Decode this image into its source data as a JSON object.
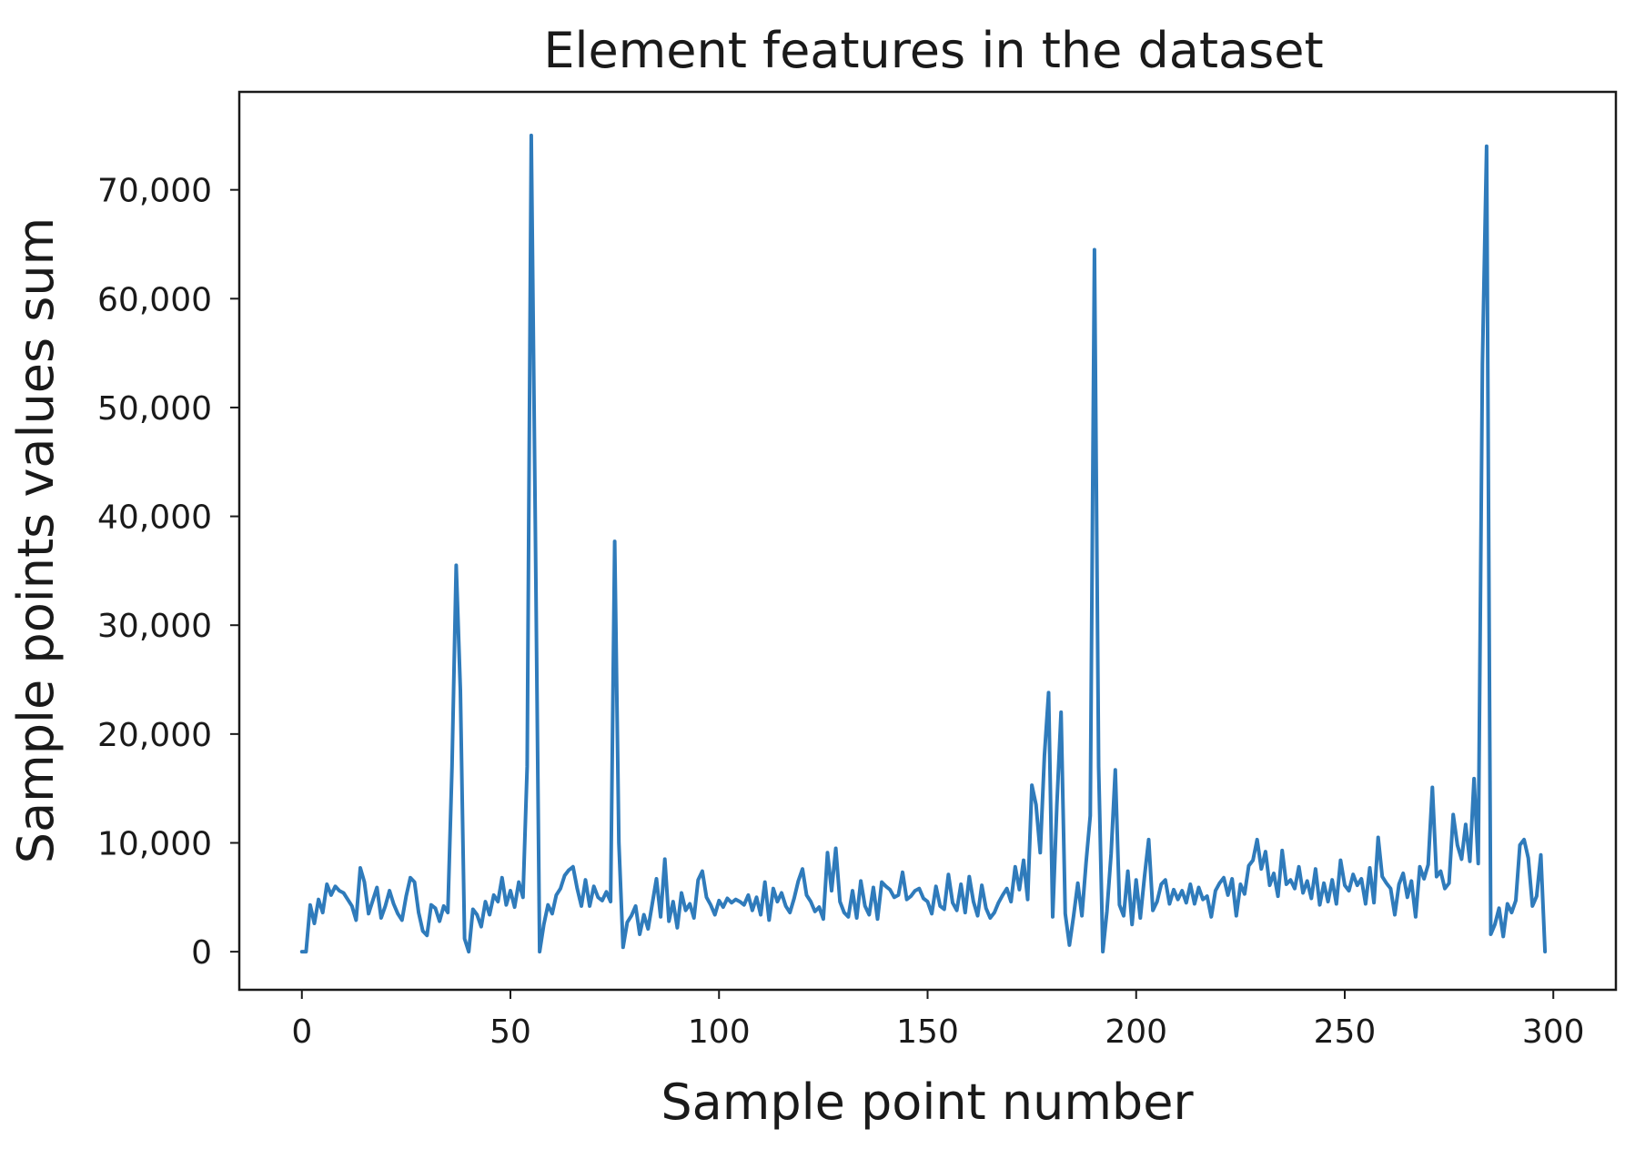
{
  "chart_data": {
    "type": "line",
    "title": "Element features in the dataset",
    "xlabel": "Sample point number",
    "ylabel": "Sample points  values sum",
    "xlim": [
      -15,
      315
    ],
    "ylim": [
      -3500,
      79000
    ],
    "xticks": [
      0,
      50,
      100,
      150,
      200,
      250,
      300
    ],
    "xtick_labels": [
      "0",
      "50",
      "100",
      "150",
      "200",
      "250",
      "300"
    ],
    "yticks": [
      0,
      10000,
      20000,
      30000,
      40000,
      50000,
      60000,
      70000
    ],
    "ytick_labels": [
      "0",
      "10,000",
      "20,000",
      "30,000",
      "40,000",
      "50,000",
      "60,000",
      "70,000"
    ],
    "grid": false,
    "line_color": "#2f7bbb",
    "series": [
      {
        "points": [
          [
            0,
            0
          ],
          [
            1,
            0
          ],
          [
            2,
            4300
          ],
          [
            3,
            2600
          ],
          [
            4,
            4800
          ],
          [
            5,
            3600
          ],
          [
            6,
            6200
          ],
          [
            7,
            5200
          ],
          [
            8,
            6000
          ],
          [
            9,
            5600
          ],
          [
            10,
            5400
          ],
          [
            11,
            4800
          ],
          [
            12,
            4200
          ],
          [
            13,
            2900
          ],
          [
            14,
            7700
          ],
          [
            15,
            6400
          ],
          [
            16,
            3500
          ],
          [
            17,
            4700
          ],
          [
            18,
            5900
          ],
          [
            19,
            3100
          ],
          [
            20,
            4200
          ],
          [
            21,
            5600
          ],
          [
            22,
            4400
          ],
          [
            23,
            3500
          ],
          [
            24,
            2900
          ],
          [
            25,
            5100
          ],
          [
            26,
            6800
          ],
          [
            27,
            6400
          ],
          [
            28,
            3600
          ],
          [
            29,
            1900
          ],
          [
            30,
            1500
          ],
          [
            31,
            4300
          ],
          [
            32,
            4000
          ],
          [
            33,
            2800
          ],
          [
            34,
            4200
          ],
          [
            35,
            3600
          ],
          [
            36,
            17000
          ],
          [
            37,
            35500
          ],
          [
            38,
            24000
          ],
          [
            39,
            1200
          ],
          [
            40,
            0
          ],
          [
            41,
            3900
          ],
          [
            42,
            3400
          ],
          [
            43,
            2300
          ],
          [
            44,
            4600
          ],
          [
            45,
            3400
          ],
          [
            46,
            5200
          ],
          [
            47,
            4600
          ],
          [
            48,
            6800
          ],
          [
            49,
            4300
          ],
          [
            50,
            5600
          ],
          [
            51,
            4100
          ],
          [
            52,
            6400
          ],
          [
            53,
            5000
          ],
          [
            54,
            17000
          ],
          [
            55,
            75000
          ],
          [
            56,
            38000
          ],
          [
            57,
            0
          ],
          [
            58,
            2500
          ],
          [
            59,
            4300
          ],
          [
            60,
            3500
          ],
          [
            61,
            5200
          ],
          [
            62,
            5800
          ],
          [
            63,
            7000
          ],
          [
            64,
            7500
          ],
          [
            65,
            7800
          ],
          [
            66,
            5800
          ],
          [
            67,
            4200
          ],
          [
            68,
            6600
          ],
          [
            69,
            4200
          ],
          [
            70,
            6000
          ],
          [
            71,
            5000
          ],
          [
            72,
            4700
          ],
          [
            73,
            5500
          ],
          [
            74,
            4600
          ],
          [
            75,
            37700
          ],
          [
            76,
            10000
          ],
          [
            77,
            400
          ],
          [
            78,
            2700
          ],
          [
            79,
            3300
          ],
          [
            80,
            4200
          ],
          [
            81,
            1600
          ],
          [
            82,
            3400
          ],
          [
            83,
            2100
          ],
          [
            84,
            4400
          ],
          [
            85,
            6700
          ],
          [
            86,
            3200
          ],
          [
            87,
            8500
          ],
          [
            88,
            2800
          ],
          [
            89,
            4600
          ],
          [
            90,
            2200
          ],
          [
            91,
            5400
          ],
          [
            92,
            3800
          ],
          [
            93,
            4400
          ],
          [
            94,
            3100
          ],
          [
            95,
            6600
          ],
          [
            96,
            7400
          ],
          [
            97,
            5000
          ],
          [
            98,
            4300
          ],
          [
            99,
            3400
          ],
          [
            100,
            4700
          ],
          [
            101,
            4100
          ],
          [
            102,
            4900
          ],
          [
            103,
            4500
          ],
          [
            104,
            4800
          ],
          [
            105,
            4600
          ],
          [
            106,
            4300
          ],
          [
            107,
            5200
          ],
          [
            108,
            3800
          ],
          [
            109,
            5000
          ],
          [
            110,
            3400
          ],
          [
            111,
            6400
          ],
          [
            112,
            2900
          ],
          [
            113,
            5800
          ],
          [
            114,
            4600
          ],
          [
            115,
            5400
          ],
          [
            116,
            4200
          ],
          [
            117,
            3600
          ],
          [
            118,
            4900
          ],
          [
            119,
            6500
          ],
          [
            120,
            7600
          ],
          [
            121,
            5200
          ],
          [
            122,
            4600
          ],
          [
            123,
            3700
          ],
          [
            124,
            4100
          ],
          [
            125,
            3000
          ],
          [
            126,
            9100
          ],
          [
            127,
            5600
          ],
          [
            128,
            9500
          ],
          [
            129,
            4600
          ],
          [
            130,
            3600
          ],
          [
            131,
            3200
          ],
          [
            132,
            5600
          ],
          [
            133,
            3100
          ],
          [
            134,
            6500
          ],
          [
            135,
            4200
          ],
          [
            136,
            3400
          ],
          [
            137,
            5900
          ],
          [
            138,
            3000
          ],
          [
            139,
            6400
          ],
          [
            140,
            6000
          ],
          [
            141,
            5700
          ],
          [
            142,
            5000
          ],
          [
            143,
            5200
          ],
          [
            144,
            7300
          ],
          [
            145,
            4800
          ],
          [
            146,
            5100
          ],
          [
            147,
            5600
          ],
          [
            148,
            5800
          ],
          [
            149,
            4900
          ],
          [
            150,
            4600
          ],
          [
            151,
            3500
          ],
          [
            152,
            6000
          ],
          [
            153,
            4200
          ],
          [
            154,
            3900
          ],
          [
            155,
            7100
          ],
          [
            156,
            4500
          ],
          [
            157,
            3800
          ],
          [
            158,
            6200
          ],
          [
            159,
            3600
          ],
          [
            160,
            6900
          ],
          [
            161,
            4600
          ],
          [
            162,
            3300
          ],
          [
            163,
            6100
          ],
          [
            164,
            4000
          ],
          [
            165,
            3100
          ],
          [
            166,
            3600
          ],
          [
            167,
            4500
          ],
          [
            168,
            5200
          ],
          [
            169,
            5800
          ],
          [
            170,
            4600
          ],
          [
            171,
            7800
          ],
          [
            172,
            5700
          ],
          [
            173,
            8400
          ],
          [
            174,
            4800
          ],
          [
            175,
            15300
          ],
          [
            176,
            13500
          ],
          [
            177,
            9100
          ],
          [
            178,
            18000
          ],
          [
            179,
            23800
          ],
          [
            180,
            3200
          ],
          [
            181,
            13500
          ],
          [
            182,
            22000
          ],
          [
            183,
            3500
          ],
          [
            184,
            600
          ],
          [
            185,
            3300
          ],
          [
            186,
            6300
          ],
          [
            187,
            3300
          ],
          [
            188,
            8200
          ],
          [
            189,
            12500
          ],
          [
            190,
            64500
          ],
          [
            191,
            17000
          ],
          [
            192,
            0
          ],
          [
            193,
            3700
          ],
          [
            194,
            9000
          ],
          [
            195,
            16700
          ],
          [
            196,
            4300
          ],
          [
            197,
            3300
          ],
          [
            198,
            7400
          ],
          [
            199,
            2500
          ],
          [
            200,
            6600
          ],
          [
            201,
            3100
          ],
          [
            202,
            6900
          ],
          [
            203,
            10300
          ],
          [
            204,
            3800
          ],
          [
            205,
            4600
          ],
          [
            206,
            6200
          ],
          [
            207,
            6600
          ],
          [
            208,
            4400
          ],
          [
            209,
            5700
          ],
          [
            210,
            4800
          ],
          [
            211,
            5600
          ],
          [
            212,
            4500
          ],
          [
            213,
            6200
          ],
          [
            214,
            4400
          ],
          [
            215,
            5900
          ],
          [
            216,
            4800
          ],
          [
            217,
            5100
          ],
          [
            218,
            3200
          ],
          [
            219,
            5600
          ],
          [
            220,
            6300
          ],
          [
            221,
            6800
          ],
          [
            222,
            5200
          ],
          [
            223,
            6700
          ],
          [
            224,
            3300
          ],
          [
            225,
            6200
          ],
          [
            226,
            5300
          ],
          [
            227,
            7900
          ],
          [
            228,
            8400
          ],
          [
            229,
            10300
          ],
          [
            230,
            7600
          ],
          [
            231,
            9200
          ],
          [
            232,
            6100
          ],
          [
            233,
            7200
          ],
          [
            234,
            5100
          ],
          [
            235,
            9300
          ],
          [
            236,
            6200
          ],
          [
            237,
            6600
          ],
          [
            238,
            5800
          ],
          [
            239,
            7800
          ],
          [
            240,
            5400
          ],
          [
            241,
            6500
          ],
          [
            242,
            4900
          ],
          [
            243,
            7600
          ],
          [
            244,
            4300
          ],
          [
            245,
            6300
          ],
          [
            246,
            4600
          ],
          [
            247,
            6600
          ],
          [
            248,
            4400
          ],
          [
            249,
            8400
          ],
          [
            250,
            6100
          ],
          [
            251,
            5600
          ],
          [
            252,
            7100
          ],
          [
            253,
            6100
          ],
          [
            254,
            6700
          ],
          [
            255,
            4400
          ],
          [
            256,
            7700
          ],
          [
            257,
            4500
          ],
          [
            258,
            10500
          ],
          [
            259,
            6900
          ],
          [
            260,
            6300
          ],
          [
            261,
            5800
          ],
          [
            262,
            3400
          ],
          [
            263,
            6200
          ],
          [
            264,
            7200
          ],
          [
            265,
            5000
          ],
          [
            266,
            6500
          ],
          [
            267,
            3200
          ],
          [
            268,
            7800
          ],
          [
            269,
            6700
          ],
          [
            270,
            8000
          ],
          [
            271,
            15100
          ],
          [
            272,
            6900
          ],
          [
            273,
            7400
          ],
          [
            274,
            5800
          ],
          [
            275,
            6300
          ],
          [
            276,
            12600
          ],
          [
            277,
            9800
          ],
          [
            278,
            8500
          ],
          [
            279,
            11700
          ],
          [
            280,
            8300
          ],
          [
            281,
            15900
          ],
          [
            282,
            8100
          ],
          [
            283,
            54000
          ],
          [
            284,
            74000
          ],
          [
            285,
            1600
          ],
          [
            286,
            2500
          ],
          [
            287,
            4000
          ],
          [
            288,
            1400
          ],
          [
            289,
            4400
          ],
          [
            290,
            3600
          ],
          [
            291,
            4700
          ],
          [
            292,
            9800
          ],
          [
            293,
            10300
          ],
          [
            294,
            8600
          ],
          [
            295,
            4200
          ],
          [
            296,
            5100
          ],
          [
            297,
            8900
          ],
          [
            298,
            0
          ]
        ]
      }
    ]
  }
}
